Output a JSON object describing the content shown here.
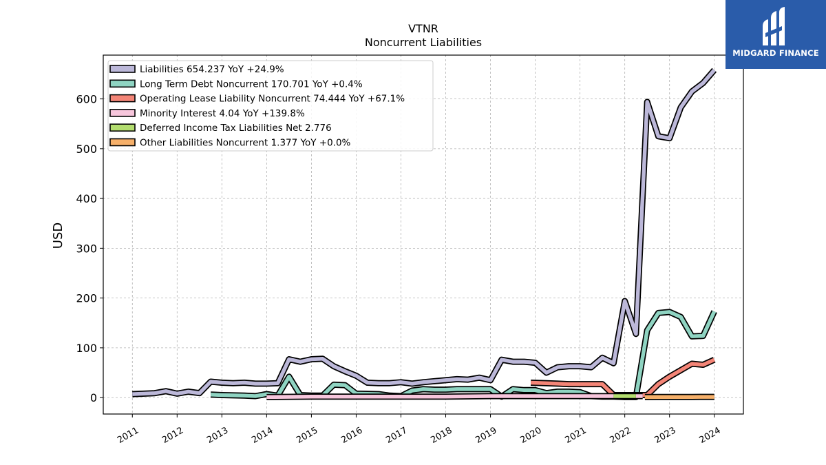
{
  "chart_data": {
    "type": "line",
    "title": "VTNR",
    "subtitle": "Noncurrent  Liabilities",
    "ylabel": "USD",
    "xlabel": "",
    "ylim": [
      -33,
      688
    ],
    "xlim": [
      2010.35,
      2024.65
    ],
    "yticks": [
      0,
      100,
      200,
      300,
      400,
      500,
      600
    ],
    "xticks": [
      2011,
      2012,
      2013,
      2014,
      2015,
      2016,
      2017,
      2018,
      2019,
      2020,
      2021,
      2022,
      2023,
      2024
    ],
    "grid": true,
    "legend_position": "top-left",
    "series": [
      {
        "name": "Liabilities",
        "legend": "Liabilities  654.237 YoY +24.9%",
        "color": "#bcb8d9",
        "points": [
          [
            2011.0,
            7
          ],
          [
            2011.5,
            9
          ],
          [
            2011.75,
            13
          ],
          [
            2012.0,
            8
          ],
          [
            2012.25,
            12
          ],
          [
            2012.5,
            9
          ],
          [
            2012.75,
            32
          ],
          [
            2013.0,
            30
          ],
          [
            2013.25,
            29
          ],
          [
            2013.5,
            30
          ],
          [
            2013.75,
            28
          ],
          [
            2014.0,
            28
          ],
          [
            2014.25,
            29
          ],
          [
            2014.5,
            77
          ],
          [
            2014.75,
            72
          ],
          [
            2015.0,
            77
          ],
          [
            2015.25,
            78
          ],
          [
            2015.5,
            63
          ],
          [
            2015.75,
            53
          ],
          [
            2016.0,
            44
          ],
          [
            2016.25,
            30
          ],
          [
            2016.5,
            29
          ],
          [
            2016.75,
            29
          ],
          [
            2017.0,
            31
          ],
          [
            2017.25,
            28
          ],
          [
            2017.5,
            31
          ],
          [
            2017.75,
            33
          ],
          [
            2018.0,
            35
          ],
          [
            2018.25,
            37
          ],
          [
            2018.5,
            36
          ],
          [
            2018.75,
            40
          ],
          [
            2019.0,
            35
          ],
          [
            2019.25,
            76
          ],
          [
            2019.5,
            72
          ],
          [
            2019.75,
            72
          ],
          [
            2020.0,
            70
          ],
          [
            2020.25,
            50
          ],
          [
            2020.5,
            61
          ],
          [
            2020.75,
            63
          ],
          [
            2021.0,
            63
          ],
          [
            2021.25,
            61
          ],
          [
            2021.5,
            80
          ],
          [
            2021.75,
            69
          ],
          [
            2022.0,
            194
          ],
          [
            2022.25,
            128
          ],
          [
            2022.5,
            594
          ],
          [
            2022.75,
            525
          ],
          [
            2023.0,
            521
          ],
          [
            2023.25,
            583
          ],
          [
            2023.5,
            615
          ],
          [
            2023.75,
            632
          ],
          [
            2024.0,
            658
          ]
        ]
      },
      {
        "name": "Long Term Debt Noncurrent",
        "legend": "Long Term Debt Noncurrent  170.701 YoY +0.4%",
        "color": "#8fd4c2",
        "points": [
          [
            2012.75,
            6
          ],
          [
            2013.0,
            5
          ],
          [
            2013.5,
            4
          ],
          [
            2013.75,
            3
          ],
          [
            2014.0,
            7
          ],
          [
            2014.25,
            4
          ],
          [
            2014.5,
            42
          ],
          [
            2014.75,
            5
          ],
          [
            2015.0,
            4
          ],
          [
            2015.25,
            4
          ],
          [
            2015.5,
            26
          ],
          [
            2015.75,
            25
          ],
          [
            2016.0,
            8
          ],
          [
            2016.5,
            7
          ],
          [
            2016.75,
            4
          ],
          [
            2017.0,
            3
          ],
          [
            2017.25,
            14
          ],
          [
            2017.5,
            17
          ],
          [
            2017.75,
            16
          ],
          [
            2018.0,
            16
          ],
          [
            2018.25,
            17
          ],
          [
            2018.5,
            17
          ],
          [
            2018.75,
            17
          ],
          [
            2019.0,
            17
          ],
          [
            2019.25,
            2
          ],
          [
            2019.5,
            17
          ],
          [
            2019.75,
            15
          ],
          [
            2020.0,
            15
          ],
          [
            2020.25,
            9
          ],
          [
            2020.5,
            12
          ],
          [
            2020.75,
            12
          ],
          [
            2021.0,
            11
          ],
          [
            2021.25,
            3
          ],
          [
            2021.5,
            2
          ],
          [
            2021.75,
            2
          ],
          [
            2022.0,
            1
          ],
          [
            2022.25,
            1
          ],
          [
            2022.5,
            135
          ],
          [
            2022.75,
            170
          ],
          [
            2023.0,
            172
          ],
          [
            2023.25,
            162
          ],
          [
            2023.5,
            123
          ],
          [
            2023.75,
            124
          ],
          [
            2024.0,
            173
          ]
        ]
      },
      {
        "name": "Operating Lease Liability Noncurrent",
        "legend": "Operating Lease Liability Noncurrent  74.444 YoY +67.1%",
        "color": "#f48577",
        "points": [
          [
            2019.9,
            30
          ],
          [
            2020.25,
            29
          ],
          [
            2020.5,
            28
          ],
          [
            2020.75,
            27
          ],
          [
            2021.0,
            27
          ],
          [
            2021.25,
            27
          ],
          [
            2021.5,
            27
          ],
          [
            2021.75,
            5
          ],
          [
            2022.0,
            5
          ],
          [
            2022.25,
            5
          ],
          [
            2022.5,
            5
          ],
          [
            2022.75,
            27
          ],
          [
            2023.0,
            42
          ],
          [
            2023.25,
            55
          ],
          [
            2023.5,
            68
          ],
          [
            2023.75,
            66
          ],
          [
            2024.0,
            76
          ]
        ]
      },
      {
        "name": "Minority Interest",
        "legend": "Minority Interest  4.04 YoY +139.8%",
        "color": "#f7c6dc",
        "points": [
          [
            2014.0,
            1
          ],
          [
            2015.0,
            2
          ],
          [
            2016.0,
            2
          ],
          [
            2017.0,
            2
          ],
          [
            2018.0,
            2
          ],
          [
            2019.0,
            3
          ],
          [
            2020.0,
            3
          ],
          [
            2021.0,
            3
          ],
          [
            2021.75,
            3
          ],
          [
            2022.0,
            3
          ],
          [
            2022.25,
            3
          ],
          [
            2022.4,
            3
          ]
        ]
      },
      {
        "name": "Deferred Income Tax Liabilities Net",
        "legend": "Deferred Income Tax Liabilities Net  2.776",
        "color": "#b3dd6f",
        "points": [
          [
            2021.75,
            3
          ],
          [
            2022.0,
            3
          ],
          [
            2022.25,
            3
          ]
        ]
      },
      {
        "name": "Other Liabilities Noncurrent",
        "legend": "Other Liabilities Noncurrent  1.377 YoY +0.0%",
        "color": "#f6b06a",
        "points": [
          [
            2022.45,
            1
          ],
          [
            2022.75,
            1.2
          ],
          [
            2023.0,
            1.3
          ],
          [
            2023.5,
            1.3
          ],
          [
            2024.0,
            1.4
          ]
        ]
      }
    ]
  },
  "logo": {
    "text": "MIDGARD FINANCE",
    "color": "#2a5caa"
  }
}
